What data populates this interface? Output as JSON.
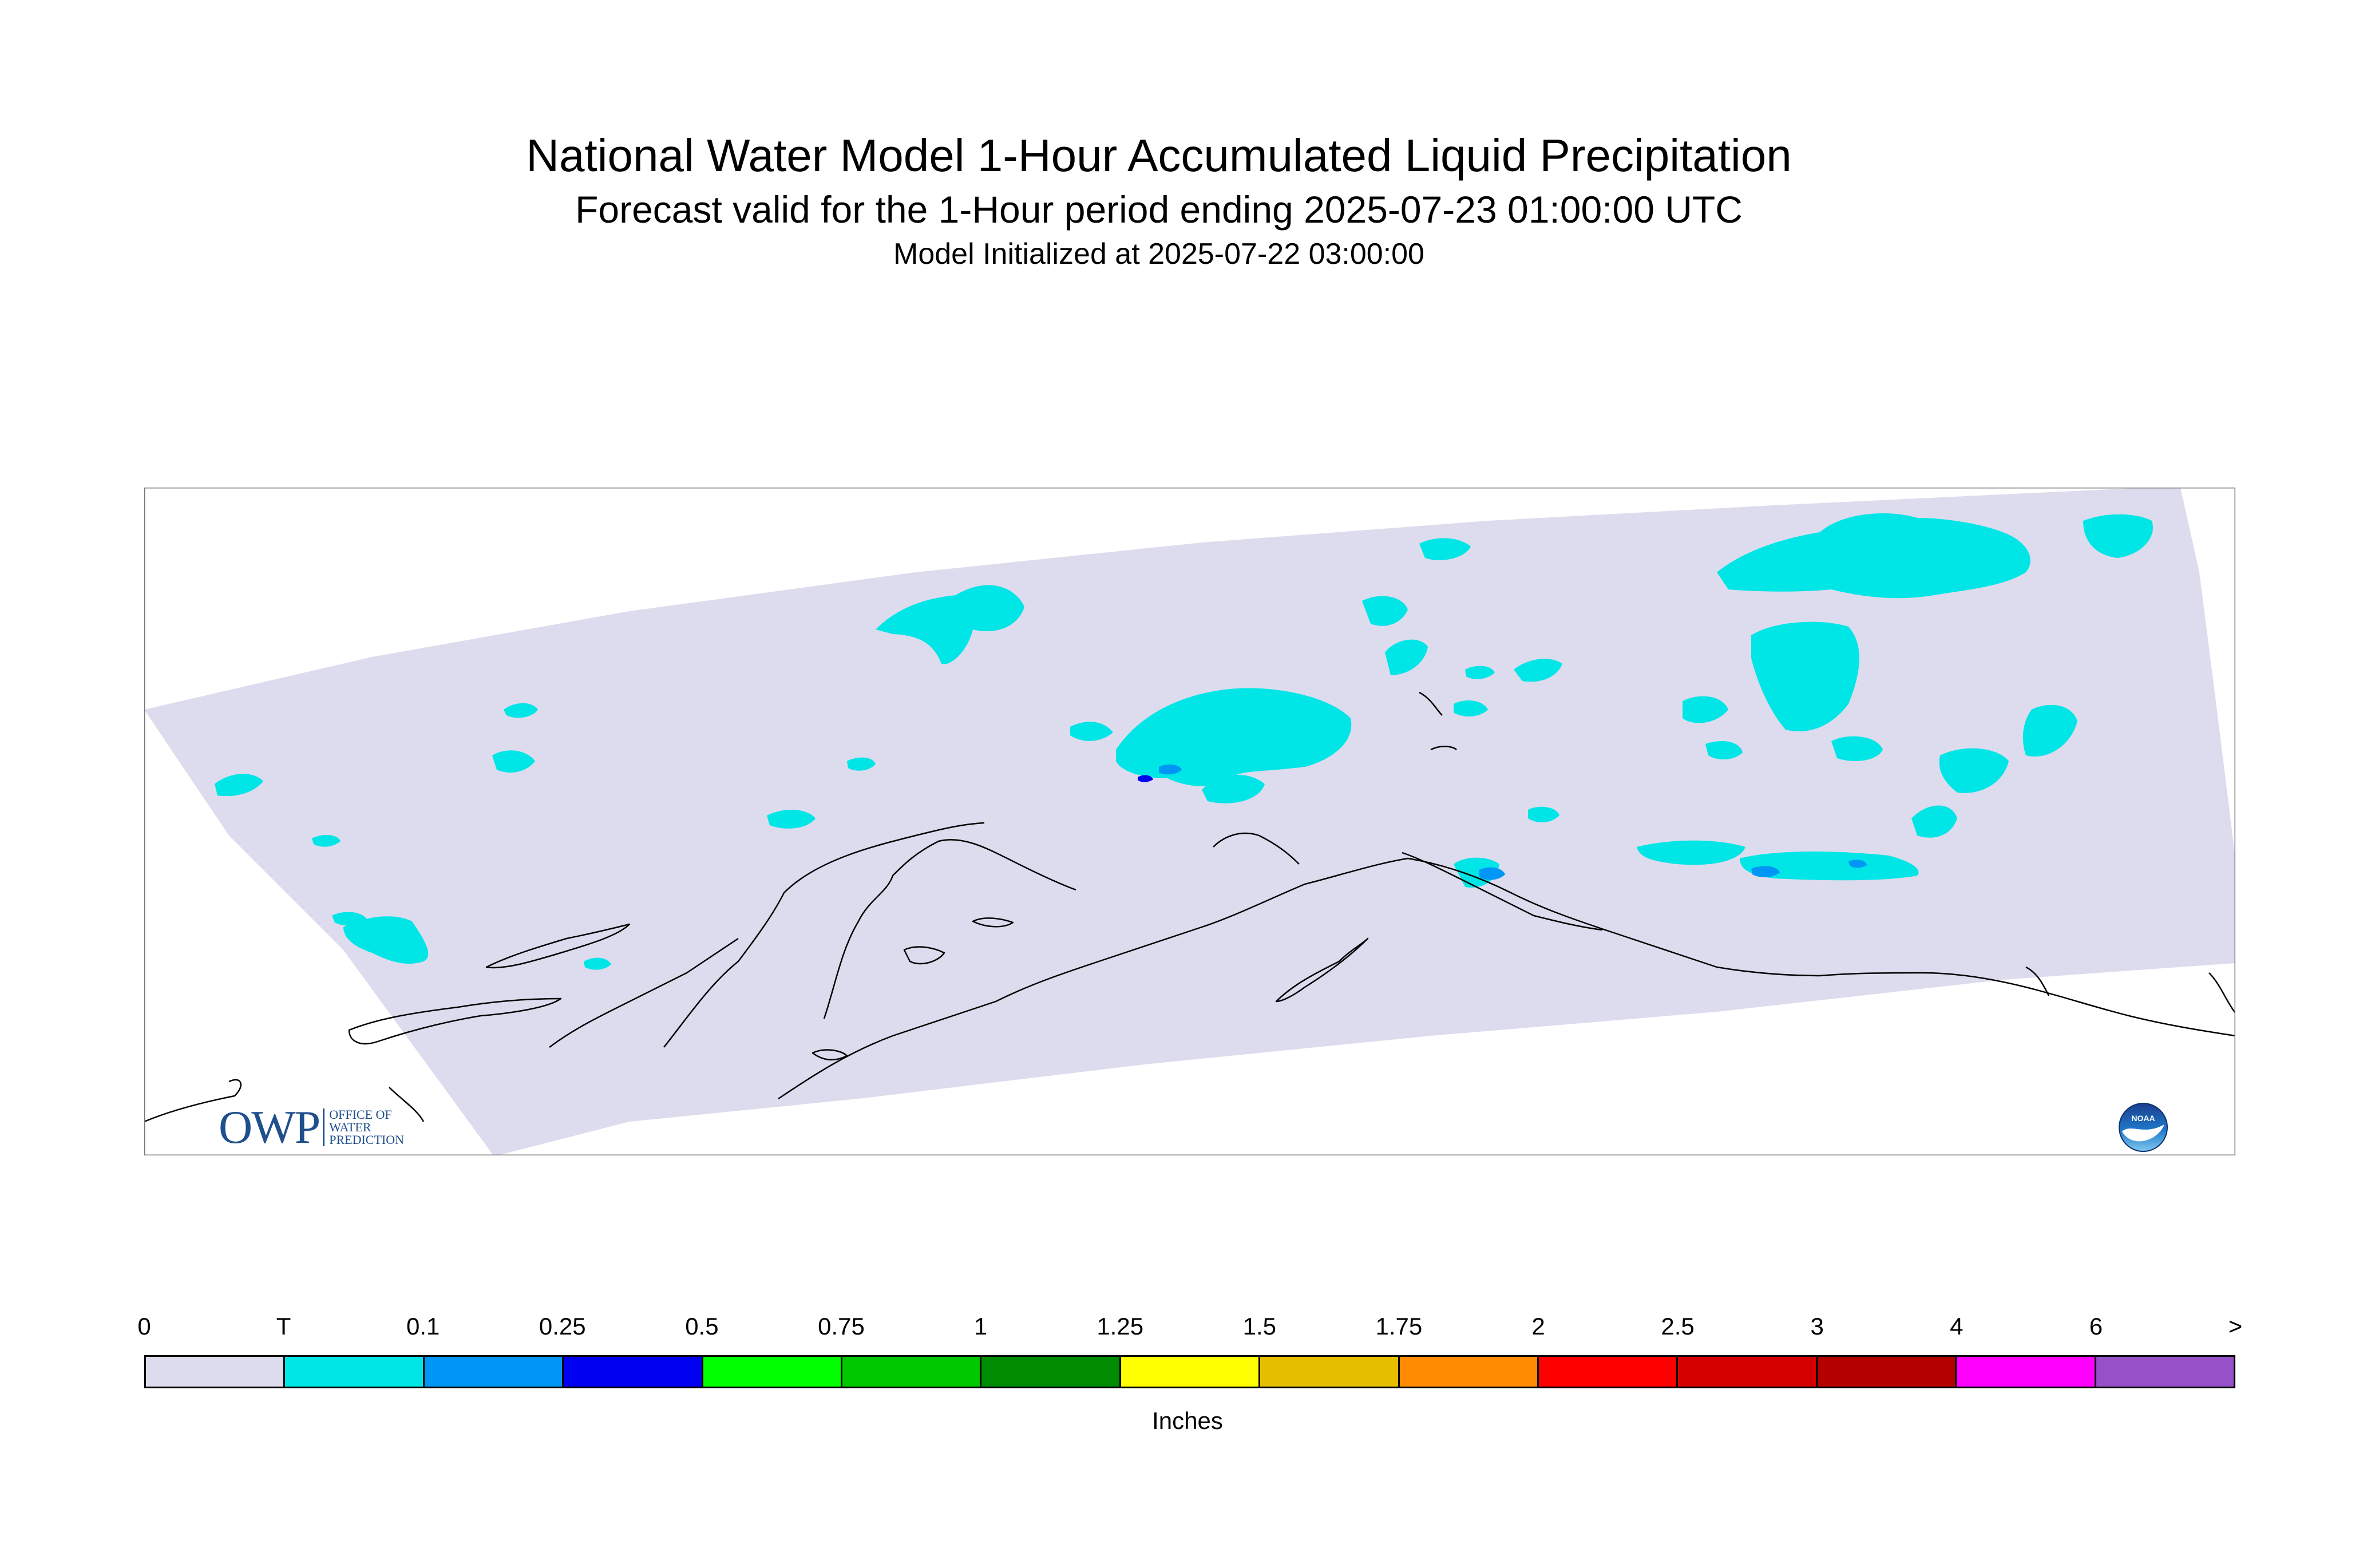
{
  "header": {
    "title": "National Water Model 1-Hour Accumulated Liquid Precipitation",
    "subtitle": "Forecast valid for the 1-Hour period ending 2025-07-23 01:00:00 UTC",
    "initialized": "Model Initialized at 2025-07-22 03:00:00"
  },
  "map": {
    "region_fill_color": "#dcdcee",
    "coastline_color": "#000000",
    "precip_colors": {
      "trace": "#00e5e5",
      "light": "#0096f5",
      "moderate": "#0000f0"
    }
  },
  "legend": {
    "labels": [
      "0",
      "T",
      "0.1",
      "0.25",
      "0.5",
      "0.75",
      "1",
      "1.25",
      "1.5",
      "1.75",
      "2",
      "2.5",
      "3",
      "4",
      "6",
      ">"
    ],
    "colors": [
      "#dcdcee",
      "#00e5e5",
      "#0096f5",
      "#0000f0",
      "#00ff00",
      "#00c800",
      "#008c00",
      "#ffff00",
      "#e6be00",
      "#ff8c00",
      "#ff0000",
      "#d40000",
      "#b40000",
      "#ff00ff",
      "#9650c8"
    ],
    "units": "Inches"
  },
  "logos": {
    "owp": {
      "letters": "OWP",
      "line1": "OFFICE OF",
      "line2": "WATER",
      "line3": "PREDICTION",
      "color": "#1f4f8c"
    },
    "noaa": {
      "text": "NOAA",
      "icon": "noaa-seal-icon"
    }
  }
}
